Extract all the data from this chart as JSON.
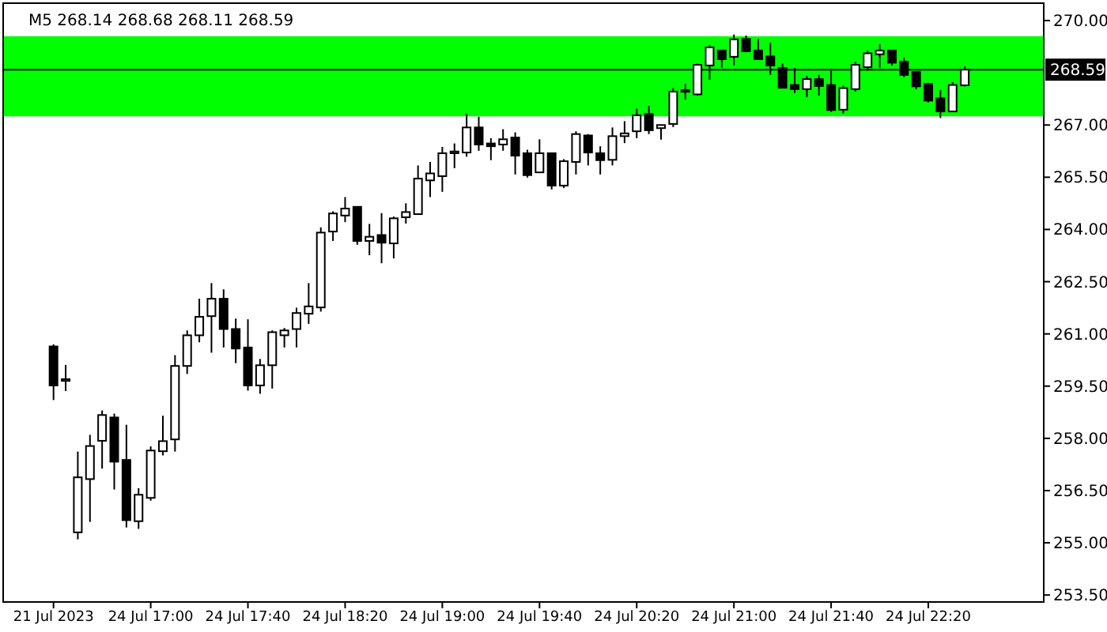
{
  "chart_data": {
    "type": "candlestick",
    "title": "M5  268.14 268.68 268.11 268.59",
    "categories": [
      "21 Jul 2023",
      null,
      null,
      null,
      null,
      null,
      null,
      null,
      "24 Jul 17:00",
      null,
      null,
      null,
      null,
      null,
      null,
      null,
      "24 Jul 17:40",
      null,
      null,
      null,
      null,
      null,
      null,
      null,
      "24 Jul 18:20",
      null,
      null,
      null,
      null,
      null,
      null,
      null,
      "24 Jul 19:00",
      null,
      null,
      null,
      null,
      null,
      null,
      null,
      "24 Jul 19:40",
      null,
      null,
      null,
      null,
      null,
      null,
      null,
      "24 Jul 20:20",
      null,
      null,
      null,
      null,
      null,
      null,
      null,
      "24 Jul 21:00",
      null,
      null,
      null,
      null,
      null,
      null,
      null,
      "24 Jul 21:40",
      null,
      null,
      null,
      null,
      null,
      null,
      null,
      "24 Jul 22:20",
      null,
      null,
      null,
      null,
      null,
      null,
      null,
      null,
      null
    ],
    "ylim": [
      253.3,
      270.5
    ],
    "yticks": [
      {
        "value": 253.5,
        "label": "253.50"
      },
      {
        "value": 255,
        "label": "255.00"
      },
      {
        "value": 256.5,
        "label": "256.50"
      },
      {
        "value": 258,
        "label": "258.00"
      },
      {
        "value": 259.5,
        "label": "259.50"
      },
      {
        "value": 261,
        "label": "261.00"
      },
      {
        "value": 262.5,
        "label": "262.50"
      },
      {
        "value": 264,
        "label": "264.00"
      },
      {
        "value": 265.5,
        "label": "265.50"
      },
      {
        "value": 267,
        "label": "267.00"
      },
      {
        "value": 270,
        "label": "270.00"
      }
    ],
    "ref_lines": [
      {
        "axis": "y",
        "value": 268.59,
        "label": "268.59",
        "color": "#000000"
      }
    ],
    "bands": [
      {
        "axis": "y",
        "from": 267.25,
        "to": 269.55,
        "color": "#00ff00"
      }
    ],
    "ohlc": [
      [
        260.64,
        260.7,
        259.1,
        259.52
      ],
      [
        259.65,
        260.11,
        259.36,
        259.7
      ],
      [
        255.3,
        257.62,
        255.1,
        256.88
      ],
      [
        256.83,
        258.1,
        255.6,
        257.78
      ],
      [
        257.93,
        258.8,
        257.13,
        258.67
      ],
      [
        258.6,
        258.71,
        256.53,
        257.33
      ],
      [
        257.38,
        258.39,
        255.44,
        255.65
      ],
      [
        255.62,
        256.57,
        255.4,
        256.38
      ],
      [
        256.29,
        257.77,
        256.21,
        257.65
      ],
      [
        257.63,
        258.65,
        257.51,
        257.92
      ],
      [
        257.97,
        260.39,
        257.62,
        260.08
      ],
      [
        260.08,
        261.1,
        259.85,
        260.96
      ],
      [
        260.96,
        262.01,
        260.76,
        261.49
      ],
      [
        261.51,
        262.46,
        260.46,
        262.01
      ],
      [
        262.01,
        262.28,
        260.61,
        261.14
      ],
      [
        261.14,
        261.44,
        260.16,
        260.58
      ],
      [
        260.61,
        261.42,
        259.37,
        259.52
      ],
      [
        259.52,
        260.28,
        259.28,
        260.1
      ],
      [
        260.1,
        261.1,
        259.43,
        261.05
      ],
      [
        260.96,
        261.17,
        260.61,
        261.1
      ],
      [
        261.14,
        261.75,
        260.61,
        261.6
      ],
      [
        261.58,
        262.46,
        261.29,
        261.79
      ],
      [
        261.76,
        264.06,
        261.64,
        263.91
      ],
      [
        263.94,
        264.52,
        263.67,
        264.46
      ],
      [
        264.4,
        264.93,
        264.21,
        264.6
      ],
      [
        264.65,
        264.65,
        263.56,
        263.67
      ],
      [
        263.67,
        264.16,
        263.26,
        263.79
      ],
      [
        263.84,
        264.47,
        263.03,
        263.62
      ],
      [
        263.6,
        264.37,
        263.17,
        264.32
      ],
      [
        264.35,
        264.75,
        264.17,
        264.5
      ],
      [
        264.44,
        265.84,
        264.43,
        265.46
      ],
      [
        265.41,
        265.94,
        264.93,
        265.61
      ],
      [
        265.53,
        266.37,
        265.08,
        266.19
      ],
      [
        266.19,
        266.47,
        265.76,
        266.24
      ],
      [
        266.21,
        267.33,
        266.09,
        266.93
      ],
      [
        266.93,
        267.24,
        266.26,
        266.44
      ],
      [
        266.47,
        266.62,
        265.99,
        266.39
      ],
      [
        266.44,
        266.88,
        266.26,
        266.59
      ],
      [
        266.64,
        266.79,
        265.58,
        266.12
      ],
      [
        266.19,
        266.29,
        265.49,
        265.56
      ],
      [
        265.64,
        266.59,
        265.64,
        266.19
      ],
      [
        266.19,
        266.19,
        265.15,
        265.26
      ],
      [
        265.26,
        266.02,
        265.19,
        265.96
      ],
      [
        265.94,
        266.82,
        265.58,
        266.74
      ],
      [
        266.7,
        266.74,
        265.84,
        266.21
      ],
      [
        266.19,
        266.39,
        265.58,
        265.99
      ],
      [
        266.0,
        266.93,
        265.84,
        266.68
      ],
      [
        266.68,
        267.11,
        266.48,
        266.76
      ],
      [
        266.82,
        267.47,
        266.62,
        267.28
      ],
      [
        267.32,
        267.55,
        266.74,
        266.85
      ],
      [
        266.91,
        267.0,
        266.58,
        267.0
      ],
      [
        267.03,
        268.06,
        266.94,
        267.96
      ],
      [
        267.97,
        268.18,
        267.73,
        268.0
      ],
      [
        267.88,
        268.76,
        267.85,
        268.73
      ],
      [
        268.71,
        269.29,
        268.3,
        269.23
      ],
      [
        269.14,
        269.14,
        268.64,
        268.89
      ],
      [
        268.96,
        269.6,
        268.71,
        269.46
      ],
      [
        269.47,
        269.57,
        269.09,
        269.12
      ],
      [
        269.14,
        269.47,
        268.89,
        268.89
      ],
      [
        268.97,
        269.36,
        268.44,
        268.71
      ],
      [
        268.64,
        268.76,
        268.07,
        268.07
      ],
      [
        268.15,
        268.64,
        267.92,
        268.03
      ],
      [
        268.03,
        268.41,
        267.8,
        268.32
      ],
      [
        268.32,
        268.44,
        267.85,
        268.12
      ],
      [
        268.15,
        268.56,
        267.38,
        267.43
      ],
      [
        267.44,
        268.14,
        267.33,
        268.06
      ],
      [
        268.03,
        268.82,
        267.96,
        268.73
      ],
      [
        268.66,
        269.14,
        268.56,
        269.06
      ],
      [
        269.03,
        269.32,
        268.64,
        269.14
      ],
      [
        269.14,
        269.14,
        268.71,
        268.79
      ],
      [
        268.82,
        268.94,
        268.38,
        268.44
      ],
      [
        268.52,
        268.52,
        268.03,
        268.11
      ],
      [
        268.18,
        268.21,
        267.65,
        267.7
      ],
      [
        267.77,
        268.0,
        267.2,
        267.39
      ],
      [
        267.39,
        268.23,
        267.39,
        268.15
      ],
      [
        268.14,
        268.68,
        268.11,
        268.59
      ],
      null,
      null,
      null,
      null,
      null,
      null
    ]
  }
}
